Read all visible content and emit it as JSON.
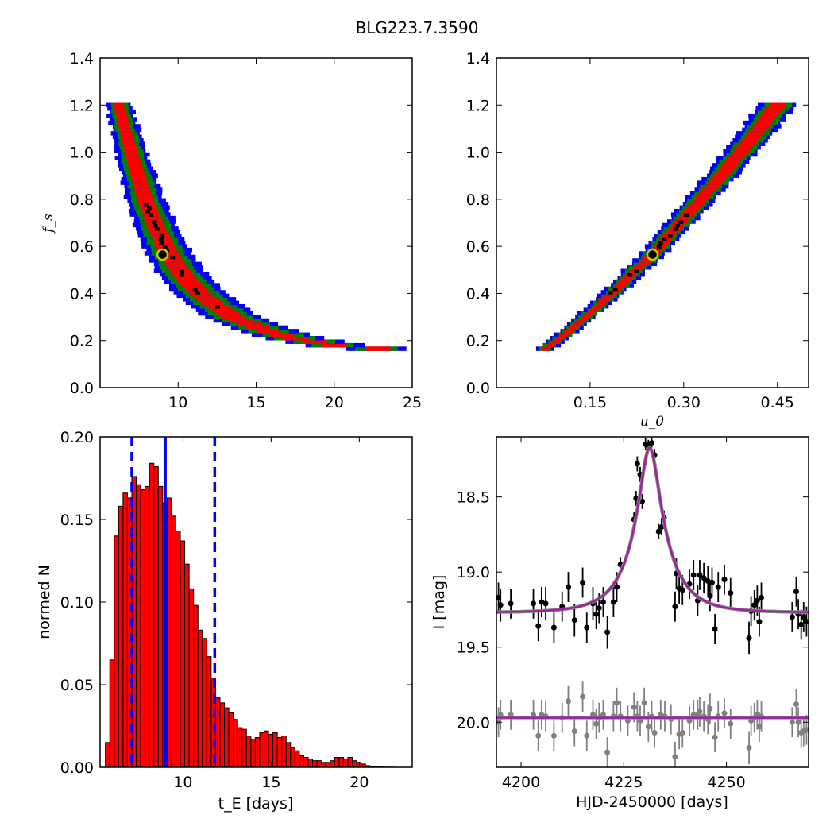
{
  "figure": {
    "title": "BLG223.7.3590"
  },
  "chart_data": [
    {
      "type": "heatmap",
      "panel": "top-left",
      "xlabel": "",
      "ylabel": "f_s",
      "xlim": [
        5,
        25
      ],
      "ylim": [
        0.0,
        1.4
      ],
      "xticks": [
        10,
        15,
        20,
        25
      ],
      "yticks": [
        0.0,
        0.2,
        0.4,
        0.6,
        0.8,
        1.0,
        1.2,
        1.4
      ],
      "colors": {
        "outer": "#0000ff",
        "middle": "#008000",
        "inner": "#ff0000",
        "core": "#000000",
        "best_fit_marker": "#c8c800"
      },
      "ridge": [
        [
          6.2,
          1.2
        ],
        [
          7.0,
          1.0
        ],
        [
          7.8,
          0.82
        ],
        [
          8.6,
          0.68
        ],
        [
          9.5,
          0.56
        ],
        [
          10.5,
          0.46
        ],
        [
          11.8,
          0.38
        ],
        [
          13.5,
          0.3
        ],
        [
          15.5,
          0.245
        ],
        [
          17.5,
          0.21
        ],
        [
          20.0,
          0.18
        ],
        [
          22.8,
          0.165
        ]
      ],
      "best_fit": {
        "x": 9.0,
        "y": 0.565
      }
    },
    {
      "type": "heatmap",
      "panel": "top-right",
      "xlabel": "u_0",
      "ylabel": "",
      "xlim": [
        0.0,
        0.5
      ],
      "ylim": [
        0.0,
        1.4
      ],
      "xticks": [
        0.15,
        0.3,
        0.45
      ],
      "xtick_labels": [
        "0.15",
        "0.30",
        "0.45"
      ],
      "yticks": [
        0.0,
        0.2,
        0.4,
        0.6,
        0.8,
        1.0,
        1.2,
        1.4
      ],
      "colors": {
        "outer": "#0000ff",
        "middle": "#008000",
        "inner": "#ff0000",
        "core": "#000000",
        "best_fit_marker": "#c8c800"
      },
      "ridge": [
        [
          0.08,
          0.165
        ],
        [
          0.12,
          0.25
        ],
        [
          0.16,
          0.34
        ],
        [
          0.2,
          0.44
        ],
        [
          0.25,
          0.565
        ],
        [
          0.3,
          0.72
        ],
        [
          0.35,
          0.87
        ],
        [
          0.4,
          1.03
        ],
        [
          0.45,
          1.2
        ]
      ],
      "best_fit": {
        "x": 0.25,
        "y": 0.565
      }
    },
    {
      "type": "bar",
      "panel": "bottom-left",
      "xlabel": "t_E  [days]",
      "ylabel": "normed N",
      "xlim": [
        5.3,
        23
      ],
      "ylim": [
        0.0,
        0.2
      ],
      "xticks": [
        10,
        15,
        20
      ],
      "yticks": [
        0.0,
        0.05,
        0.1,
        0.15,
        0.2
      ],
      "ytick_labels": [
        "0.00",
        "0.05",
        "0.10",
        "0.15",
        "0.20"
      ],
      "bin_start": 5.6,
      "bin_width": 0.25,
      "values": [
        0.015,
        0.065,
        0.14,
        0.158,
        0.166,
        0.163,
        0.176,
        0.171,
        0.168,
        0.17,
        0.184,
        0.182,
        0.17,
        0.16,
        0.163,
        0.152,
        0.143,
        0.137,
        0.123,
        0.108,
        0.098,
        0.083,
        0.078,
        0.067,
        0.054,
        0.042,
        0.039,
        0.036,
        0.033,
        0.029,
        0.024,
        0.023,
        0.019,
        0.017,
        0.018,
        0.021,
        0.022,
        0.02,
        0.021,
        0.018,
        0.019,
        0.015,
        0.012,
        0.01,
        0.007,
        0.006,
        0.005,
        0.004,
        0.004,
        0.003,
        0.003,
        0.004,
        0.006,
        0.006,
        0.005,
        0.006,
        0.004,
        0.003,
        0.002,
        0.001,
        0.0005,
        0.0003,
        0.0002,
        0.0001,
        0.0001,
        0.0001
      ],
      "bar_color": "#ff0000",
      "median": 9.0,
      "interval": [
        7.1,
        11.8
      ],
      "line_color": "#0000ff"
    },
    {
      "type": "scatter",
      "panel": "bottom-right",
      "xlabel": "HJD-2450000 [days]",
      "ylabel": "I [mag]",
      "xlim": [
        4194,
        4270
      ],
      "ylim": [
        20.3,
        18.1
      ],
      "y_inverted": true,
      "xticks": [
        4200,
        4225,
        4250
      ],
      "yticks": [
        18.5,
        19.0,
        19.5,
        20.0
      ],
      "model": {
        "t0": 4231.3,
        "tE": 9.0,
        "u0": 0.25,
        "fs": 0.565,
        "baseline": 19.27,
        "color": "#a020a0"
      },
      "series": [
        {
          "color": "#000000",
          "points": [
            [
              4194.5,
              19.17,
              0.1
            ],
            [
              4195.0,
              19.22,
              0.11
            ],
            [
              4197.5,
              19.21,
              0.1
            ],
            [
              4203.0,
              19.21,
              0.1
            ],
            [
              4204.2,
              19.36,
              0.1
            ],
            [
              4205.0,
              19.2,
              0.1
            ],
            [
              4206.0,
              19.21,
              0.11
            ],
            [
              4208.0,
              19.37,
              0.1
            ],
            [
              4210.0,
              19.23,
              0.1
            ],
            [
              4211.5,
              19.1,
              0.1
            ],
            [
              4213.0,
              19.32,
              0.11
            ],
            [
              4215.0,
              19.07,
              0.1
            ],
            [
              4216.0,
              19.37,
              0.1
            ],
            [
              4217.5,
              19.21,
              0.11
            ],
            [
              4218.3,
              19.28,
              0.1
            ],
            [
              4219.0,
              19.24,
              0.1
            ],
            [
              4220.0,
              19.2,
              0.1
            ],
            [
              4221.0,
              19.4,
              0.11
            ],
            [
              4222.5,
              19.2,
              0.1
            ],
            [
              4223.3,
              19.1,
              0.1
            ],
            [
              4224.2,
              18.95,
              0.05
            ],
            [
              4227.5,
              18.65,
              0.05
            ],
            [
              4228.0,
              18.51,
              0.05
            ],
            [
              4229.0,
              18.35,
              0.05
            ],
            [
              4228.3,
              18.28,
              0.05
            ],
            [
              4229.5,
              18.53,
              0.05
            ],
            [
              4230.3,
              18.15,
              0.04
            ],
            [
              4231.0,
              18.16,
              0.04
            ],
            [
              4231.8,
              18.14,
              0.04
            ],
            [
              4232.5,
              18.22,
              0.04
            ],
            [
              4233.5,
              18.73,
              0.05
            ],
            [
              4234.2,
              18.7,
              0.05
            ],
            [
              4234.8,
              18.64,
              0.05
            ],
            [
              4237.5,
              19.23,
              0.1
            ],
            [
              4237.8,
              19.01,
              0.1
            ],
            [
              4238.5,
              19.11,
              0.1
            ],
            [
              4239.3,
              19.12,
              0.1
            ],
            [
              4241.0,
              19.08,
              0.1
            ],
            [
              4242.0,
              19.02,
              0.1
            ],
            [
              4243.0,
              19.19,
              0.1
            ],
            [
              4243.5,
              19.02,
              0.1
            ],
            [
              4244.5,
              19.04,
              0.1
            ],
            [
              4245.5,
              19.06,
              0.1
            ],
            [
              4246.0,
              19.16,
              0.1
            ],
            [
              4246.5,
              19.07,
              0.1
            ],
            [
              4247.2,
              19.38,
              0.1
            ],
            [
              4248.0,
              19.1,
              0.1
            ],
            [
              4249.5,
              19.05,
              0.1
            ],
            [
              4251.0,
              19.14,
              0.1
            ],
            [
              4255.5,
              19.44,
              0.11
            ],
            [
              4256.0,
              19.26,
              0.1
            ],
            [
              4256.8,
              19.22,
              0.1
            ],
            [
              4257.5,
              19.19,
              0.1
            ],
            [
              4258.0,
              19.33,
              0.1
            ],
            [
              4258.5,
              19.17,
              0.1
            ],
            [
              4266.0,
              19.3,
              0.1
            ],
            [
              4267.0,
              19.13,
              0.1
            ],
            [
              4267.5,
              19.28,
              0.1
            ],
            [
              4268.2,
              19.35,
              0.1
            ],
            [
              4268.8,
              19.3,
              0.1
            ],
            [
              4269.5,
              19.33,
              0.1
            ]
          ]
        },
        {
          "color": "#808080",
          "points": [
            [
              4194.5,
              20.0,
              0.1
            ],
            [
              4195.0,
              19.95,
              0.1
            ],
            [
              4197.5,
              19.95,
              0.1
            ],
            [
              4203.0,
              19.95,
              0.1
            ],
            [
              4204.2,
              20.09,
              0.1
            ],
            [
              4205.0,
              19.95,
              0.1
            ],
            [
              4206.0,
              19.96,
              0.1
            ],
            [
              4208.0,
              20.09,
              0.1
            ],
            [
              4210.0,
              19.97,
              0.1
            ],
            [
              4211.5,
              19.86,
              0.1
            ],
            [
              4213.0,
              20.06,
              0.1
            ],
            [
              4215.0,
              19.83,
              0.1
            ],
            [
              4216.0,
              20.09,
              0.1
            ],
            [
              4217.5,
              19.95,
              0.1
            ],
            [
              4218.3,
              20.01,
              0.1
            ],
            [
              4219.0,
              19.97,
              0.1
            ],
            [
              4220.0,
              19.95,
              0.1
            ],
            [
              4221.0,
              20.2,
              0.1
            ],
            [
              4222.5,
              19.96,
              0.1
            ],
            [
              4223.3,
              19.87,
              0.1
            ],
            [
              4224.2,
              19.96,
              0.1
            ],
            [
              4226.0,
              19.99,
              0.1
            ],
            [
              4227.5,
              19.9,
              0.1
            ],
            [
              4228.3,
              19.96,
              0.1
            ],
            [
              4229.0,
              19.99,
              0.1
            ],
            [
              4230.0,
              19.87,
              0.1
            ],
            [
              4231.0,
              20.03,
              0.1
            ],
            [
              4231.8,
              19.96,
              0.1
            ],
            [
              4232.5,
              20.07,
              0.1
            ],
            [
              4234.0,
              19.95,
              0.1
            ],
            [
              4235.0,
              19.96,
              0.1
            ],
            [
              4236.5,
              19.98,
              0.1
            ],
            [
              4237.5,
              20.23,
              0.1
            ],
            [
              4238.5,
              20.08,
              0.1
            ],
            [
              4239.3,
              20.07,
              0.1
            ],
            [
              4241.0,
              19.99,
              0.1
            ],
            [
              4242.0,
              19.95,
              0.1
            ],
            [
              4243.0,
              19.95,
              0.1
            ],
            [
              4243.5,
              19.93,
              0.1
            ],
            [
              4244.5,
              19.96,
              0.1
            ],
            [
              4245.5,
              19.98,
              0.1
            ],
            [
              4246.0,
              19.91,
              0.1
            ],
            [
              4247.2,
              20.1,
              0.1
            ],
            [
              4248.0,
              19.96,
              0.1
            ],
            [
              4249.5,
              19.94,
              0.1
            ],
            [
              4251.0,
              20.01,
              0.1
            ],
            [
              4255.5,
              20.17,
              0.11
            ],
            [
              4256.0,
              19.99,
              0.1
            ],
            [
              4256.8,
              19.97,
              0.1
            ],
            [
              4257.5,
              19.95,
              0.1
            ],
            [
              4258.0,
              20.03,
              0.1
            ],
            [
              4258.5,
              19.96,
              0.1
            ],
            [
              4266.0,
              20.0,
              0.1
            ],
            [
              4267.0,
              19.88,
              0.1
            ],
            [
              4267.5,
              20.0,
              0.1
            ],
            [
              4268.2,
              20.07,
              0.1
            ],
            [
              4268.8,
              20.06,
              0.1
            ],
            [
              4269.5,
              20.05,
              0.1
            ]
          ]
        }
      ],
      "flat_model": {
        "value": 19.97,
        "color": "#a020a0"
      }
    }
  ]
}
